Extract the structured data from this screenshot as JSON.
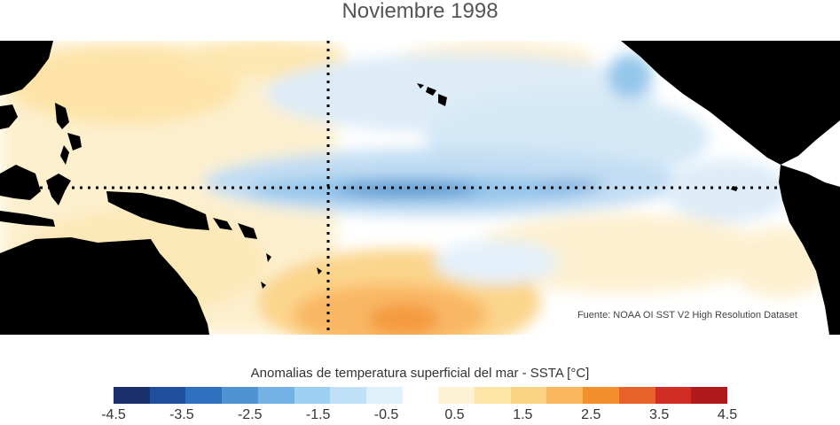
{
  "title": "Noviembre 1998",
  "source": "Fuente: NOAA OI SST V2 High Resolution Dataset",
  "colorbar": {
    "title": "Anomalias de temperatura superficial del mar - SSTA  [°C]",
    "ticks": [
      "-4.5",
      "-3.5",
      "-2.5",
      "-1.5",
      "-0.5",
      "0.5",
      "1.5",
      "2.5",
      "3.5",
      "4.5"
    ],
    "colors": [
      "#1b2f6b",
      "#1f4e9c",
      "#2e6fbe",
      "#4f93d3",
      "#74b2e6",
      "#9dd0f3",
      "#bfe0f7",
      "#dff0fa",
      "#ffffff",
      "#fdf3d4",
      "#fde7a8",
      "#fbd183",
      "#f9b65c",
      "#f48f2e",
      "#e8612a",
      "#d22d25",
      "#b01a1c"
    ]
  },
  "map": {
    "land_color": "#000000",
    "ocean_neutral_color": "#ffffff",
    "reference_lines": [
      "equator",
      "dateline"
    ]
  }
}
